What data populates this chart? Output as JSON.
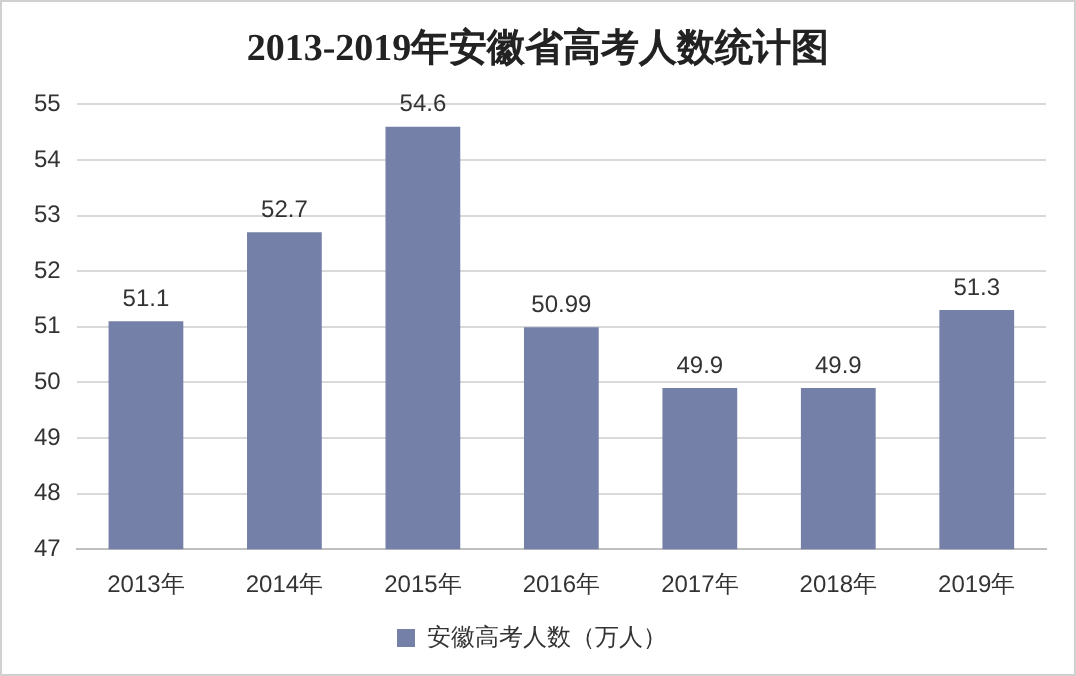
{
  "chart_data": {
    "type": "bar",
    "title": "2013-2019年安徽省高考人数统计图",
    "categories": [
      "2013年",
      "2014年",
      "2015年",
      "2016年",
      "2017年",
      "2018年",
      "2019年"
    ],
    "series": [
      {
        "name": "安徽高考人数（万人）",
        "color": "#7480a8",
        "values": [
          51.1,
          52.7,
          54.6,
          50.99,
          49.9,
          49.9,
          51.3
        ]
      }
    ],
    "ylim": [
      47,
      55
    ],
    "yticks": [
      47,
      48,
      49,
      50,
      51,
      52,
      53,
      54,
      55
    ],
    "grid": "y",
    "legend": "bottom",
    "data_labels": true
  }
}
